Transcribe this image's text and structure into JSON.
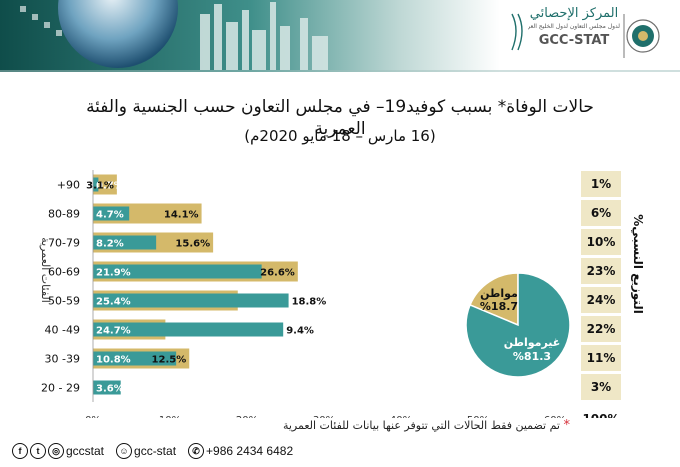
{
  "header": {
    "logo_arabic": "المركز الإحصائي",
    "logo_arabic_sub": "لدول مجلس التعاون لدول الخليج العربية",
    "logo_latin": "GCC-STAT"
  },
  "colors": {
    "non_citizen": "#3a9a98",
    "citizen": "#d4b96a",
    "ratio_box": "#efe7c6",
    "header_teal": "#1f6f6b"
  },
  "chart_data": [
    {
      "type": "bar",
      "stacked": false,
      "orientation": "horizontal",
      "title": "حالات الوفاة* بسبب كوفيد19– في مجلس التعاون حسب الجنسية والفئة العمرية",
      "subtitle": "(16 مارس – 18 مايو 2020م)",
      "ylabel": "الفئات العمرية",
      "categories": [
        "+90",
        "80-89",
        "70-79",
        "60-69",
        "50-59",
        "40 -49",
        "30 -39",
        "20 - 29"
      ],
      "series": [
        {
          "name": "مواطن",
          "values": [
            3.1,
            14.1,
            15.6,
            26.6,
            18.8,
            9.4,
            12.5,
            0
          ]
        },
        {
          "name": "غيرمواطن",
          "values": [
            0.7,
            4.7,
            8.2,
            21.9,
            25.4,
            24.7,
            10.8,
            3.6
          ]
        }
      ],
      "value_labels": {
        "citizen": [
          "3.1%",
          "14.1%",
          "15.6%",
          "26.6%",
          "18.8%",
          "9.4%",
          "12.5%",
          ""
        ],
        "non_citizen": [
          "0.7%",
          "4.7%",
          "8.2%",
          "21.9%",
          "25.4%",
          "24.7%",
          "10.8%",
          "3.6%"
        ]
      },
      "xlim": [
        0,
        60
      ],
      "xticks": [
        0,
        10,
        20,
        30,
        40,
        50,
        60
      ],
      "xtick_labels": [
        "0%",
        "10%",
        "20%",
        "30%",
        "40%",
        "50%",
        "60%"
      ],
      "grid": false
    },
    {
      "type": "pie",
      "slices": [
        {
          "label": "مواطن",
          "value": 18.7,
          "value_label": "%18.7"
        },
        {
          "label": "غيرمواطن",
          "value": 81.3,
          "value_label": "%81.3"
        }
      ]
    },
    {
      "type": "table",
      "title": "%التوزيع النسبي",
      "values": [
        "1%",
        "6%",
        "10%",
        "23%",
        "24%",
        "22%",
        "11%",
        "3%"
      ],
      "total": "100%"
    }
  ],
  "footnote": "تم تضمين فقط الحالات التي تتوفر عنها بيانات للفئات العمرية",
  "footnote_mark": "*",
  "social": {
    "handle1": "gccstat",
    "handle2": "gcc-stat",
    "phone": "+986 2434 6482"
  }
}
